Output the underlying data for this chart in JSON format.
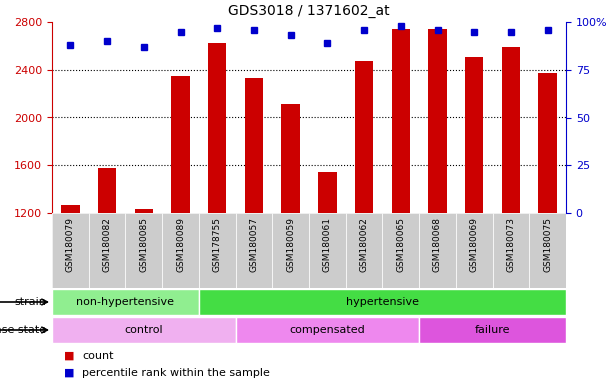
{
  "title": "GDS3018 / 1371602_at",
  "samples": [
    "GSM180079",
    "GSM180082",
    "GSM180085",
    "GSM180089",
    "GSM178755",
    "GSM180057",
    "GSM180059",
    "GSM180061",
    "GSM180062",
    "GSM180065",
    "GSM180068",
    "GSM180069",
    "GSM180073",
    "GSM180075"
  ],
  "counts": [
    1270,
    1580,
    1230,
    2350,
    2620,
    2330,
    2110,
    1540,
    2470,
    2740,
    2740,
    2510,
    2590,
    2370
  ],
  "percentiles": [
    88,
    90,
    87,
    95,
    97,
    96,
    93,
    89,
    96,
    98,
    96,
    95,
    95,
    96
  ],
  "ylim_left": [
    1200,
    2800
  ],
  "ylim_right": [
    0,
    100
  ],
  "yticks_left": [
    1200,
    1600,
    2000,
    2400,
    2800
  ],
  "yticks_right": [
    0,
    25,
    50,
    75,
    100
  ],
  "bar_color": "#cc0000",
  "dot_color": "#0000cc",
  "strain_groups": [
    {
      "label": "non-hypertensive",
      "start": 0,
      "end": 4,
      "color": "#90ee90"
    },
    {
      "label": "hypertensive",
      "start": 4,
      "end": 14,
      "color": "#44dd44"
    }
  ],
  "disease_groups": [
    {
      "label": "control",
      "start": 0,
      "end": 5,
      "color": "#f0b0f0"
    },
    {
      "label": "compensated",
      "start": 5,
      "end": 10,
      "color": "#ee88ee"
    },
    {
      "label": "failure",
      "start": 10,
      "end": 14,
      "color": "#dd55dd"
    }
  ],
  "legend_count_label": "count",
  "legend_percentile_label": "percentile rank within the sample",
  "xlabel_strain": "strain",
  "xlabel_disease": "disease state",
  "left_tick_color": "#cc0000",
  "right_tick_color": "#0000cc",
  "xticklabel_bg": "#cccccc",
  "grid_dotted_at": [
    1600,
    2000,
    2400
  ]
}
